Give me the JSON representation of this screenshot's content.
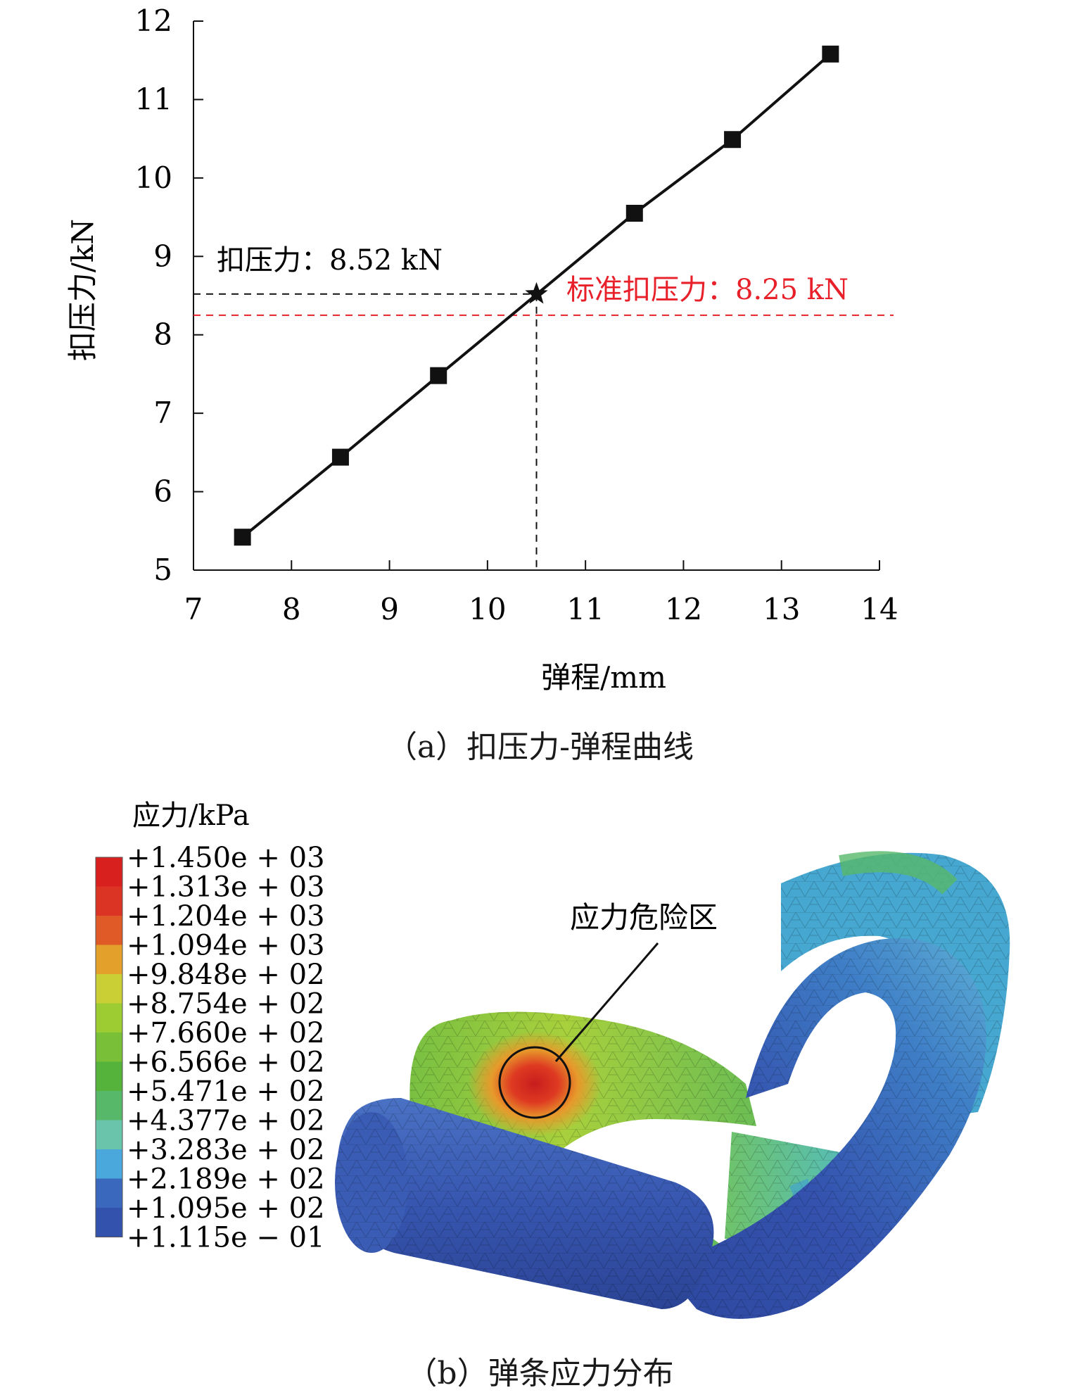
{
  "chart_data": {
    "type": "line",
    "x": [
      7.5,
      8.5,
      9.5,
      11.5,
      12.5,
      13.5
    ],
    "series": [
      {
        "values": [
          5.42,
          6.44,
          7.48,
          9.55,
          10.49,
          11.58
        ]
      }
    ],
    "xlabel": "弹程/mm",
    "ylabel": "扣压力/kN",
    "xlim": [
      7,
      14
    ],
    "ylim": [
      5,
      12
    ],
    "xticks": [
      "7",
      "8",
      "9",
      "10",
      "11",
      "12",
      "13",
      "14"
    ],
    "yticks": [
      "5",
      "6",
      "7",
      "8",
      "9",
      "10",
      "11",
      "12"
    ],
    "grid": false,
    "marker": {
      "x": 10.5,
      "y": 8.52,
      "label": "扣压力：8.52 kN"
    },
    "reference": {
      "y": 8.25,
      "label": "标准扣压力：8.25 kN",
      "color": "#e8202a"
    }
  },
  "captions": {
    "a": "（a）扣压力-弹程曲线",
    "b": "（b）弹条应力分布"
  },
  "contour": {
    "legend_title": "应力/kPa",
    "levels": [
      "+1.450e + 03",
      "+1.313e + 03",
      "+1.204e + 03",
      "+1.094e + 03",
      "+9.848e + 02",
      "+8.754e + 02",
      "+7.660e + 02",
      "+6.566e + 02",
      "+5.471e + 02",
      "+4.377e + 02",
      "+3.283e + 02",
      "+2.189e + 02",
      "+1.095e + 02",
      "+1.115e − 01"
    ],
    "colors": [
      "#d8201e",
      "#dc3424",
      "#e05a28",
      "#e3a02a",
      "#c9cf35",
      "#9ccc32",
      "#79bf37",
      "#55b33b",
      "#58b86a",
      "#6ac4ac",
      "#4aa8dc",
      "#3a68bd",
      "#3352ae"
    ],
    "annotation": "应力危险区"
  }
}
